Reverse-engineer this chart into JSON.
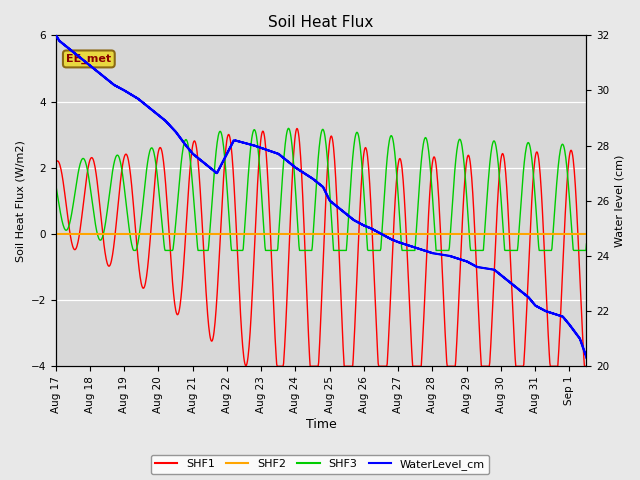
{
  "title": "Soil Heat Flux",
  "ylabel_left": "Soil Heat Flux (W/m2)",
  "ylabel_right": "Water level (cm)",
  "xlabel": "Time",
  "ylim_left": [
    -4.0,
    6.0
  ],
  "ylim_right": [
    20,
    32
  ],
  "fig_bg_color": "#e8e8e8",
  "plot_bg_color": "#d8d8d8",
  "grid_color": "white",
  "annotation_text": "EE_met",
  "annotation_color": "#8B0000",
  "annotation_bg": "#e8d840",
  "annotation_edge": "#8B6914",
  "line_colors": {
    "SHF1": "#ff0000",
    "SHF2": "#ffa500",
    "SHF3": "#00cc00",
    "WaterLevel": "#0000ff"
  },
  "legend_entries": [
    "SHF1",
    "SHF2",
    "SHF3",
    "WaterLevel_cm"
  ],
  "x_tick_labels": [
    "Aug 17",
    "Aug 18",
    "Aug 19",
    "Aug 20",
    "Aug 21",
    "Aug 22",
    "Aug 23",
    "Aug 24",
    "Aug 25",
    "Aug 26",
    "Aug 27",
    "Aug 28",
    "Aug 29",
    "Aug 30",
    "Aug 31",
    "Sep 1"
  ],
  "wl_t": [
    0.0,
    0.1,
    0.3,
    0.5,
    0.8,
    1.0,
    1.3,
    1.7,
    2.0,
    2.4,
    2.8,
    3.2,
    3.5,
    3.8,
    4.0,
    4.3,
    4.7,
    5.2,
    5.8,
    6.5,
    7.0,
    7.5,
    7.8,
    8.0,
    8.3,
    8.5,
    8.7,
    9.0,
    9.2,
    9.5,
    9.8,
    10.0,
    10.5,
    11.0,
    11.5,
    12.0,
    12.3,
    12.8,
    13.0,
    13.5,
    13.8,
    14.0,
    14.3,
    14.8,
    15.0,
    15.3,
    15.5
  ],
  "wl_v": [
    32.0,
    31.8,
    31.6,
    31.4,
    31.1,
    30.9,
    30.6,
    30.2,
    30.0,
    29.7,
    29.3,
    28.9,
    28.5,
    28.0,
    27.7,
    27.4,
    27.0,
    28.2,
    28.0,
    27.7,
    27.2,
    26.8,
    26.5,
    26.0,
    25.7,
    25.5,
    25.3,
    25.1,
    25.0,
    24.8,
    24.6,
    24.5,
    24.3,
    24.1,
    24.0,
    23.8,
    23.6,
    23.5,
    23.3,
    22.8,
    22.5,
    22.2,
    22.0,
    21.8,
    21.5,
    21.0,
    20.3
  ]
}
